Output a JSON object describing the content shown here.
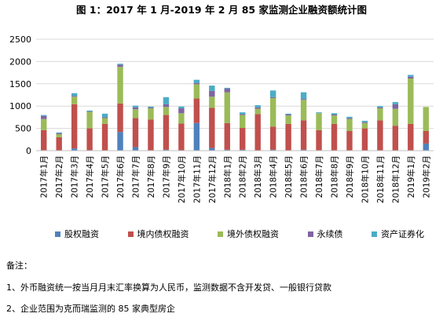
{
  "chart_data": {
    "type": "bar",
    "stacked": true,
    "title": "图 1：2017 年 1 月-2019 年 2 月 85 家监测企业融资额统计图",
    "ylim": [
      0,
      2500
    ],
    "yticks": [
      0,
      500,
      1000,
      1500,
      2000,
      2500
    ],
    "grid": true,
    "legend_position": "bottom",
    "categories": [
      "2017年1月",
      "2017年2月",
      "2017年3月",
      "2017年4月",
      "2017年5月",
      "2017年6月",
      "2017年7月",
      "2017年8月",
      "2017年9月",
      "2017年10月",
      "2017年11月",
      "2017年12月",
      "2018年1月",
      "2018年2月",
      "2018年3月",
      "2018年4月",
      "2018年5月",
      "2018年6月",
      "2018年7月",
      "2018年8月",
      "2018年9月",
      "2018年10月",
      "2018年11月",
      "2018年12月",
      "2019年1月",
      "2019年2月"
    ],
    "series": [
      {
        "name": "股权融资",
        "color": "#4f81bd",
        "values": [
          10,
          0,
          50,
          0,
          0,
          420,
          80,
          0,
          20,
          0,
          620,
          60,
          20,
          20,
          0,
          20,
          0,
          20,
          10,
          0,
          0,
          0,
          0,
          0,
          0,
          160
        ]
      },
      {
        "name": "境内债权融资",
        "color": "#c0504d",
        "values": [
          450,
          300,
          990,
          500,
          600,
          640,
          650,
          700,
          780,
          610,
          550,
          900,
          600,
          490,
          820,
          520,
          600,
          660,
          450,
          600,
          440,
          500,
          680,
          560,
          600,
          280
        ]
      },
      {
        "name": "境外债权融资",
        "color": "#9bbb59",
        "values": [
          250,
          70,
          170,
          370,
          130,
          820,
          200,
          250,
          180,
          230,
          320,
          250,
          690,
          290,
          120,
          640,
          190,
          460,
          380,
          190,
          270,
          120,
          270,
          380,
          1020,
          540
        ]
      },
      {
        "name": "永续债",
        "color": "#8064a2",
        "values": [
          70,
          20,
          20,
          10,
          20,
          50,
          40,
          20,
          60,
          110,
          30,
          130,
          80,
          20,
          30,
          20,
          20,
          20,
          0,
          20,
          20,
          20,
          20,
          100,
          40,
          0
        ]
      },
      {
        "name": "资产证券化",
        "color": "#4bacc6",
        "values": [
          20,
          20,
          60,
          20,
          80,
          20,
          40,
          20,
          160,
          40,
          70,
          120,
          20,
          40,
          50,
          150,
          20,
          150,
          20,
          30,
          30,
          30,
          30,
          50,
          40,
          0
        ]
      }
    ]
  },
  "notes": {
    "header": "备注：",
    "line1": "1、外币融资统一按当月月末汇率换算为人民币，监测数据不含开发贷、一般银行贷款",
    "line2": "2、企业范围为克而瑞监测的 85 家典型房企"
  }
}
